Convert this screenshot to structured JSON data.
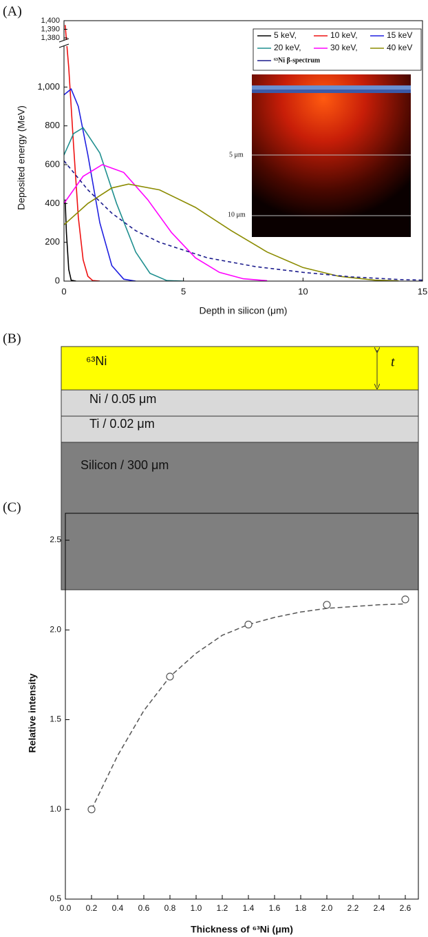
{
  "chart_data": [
    {
      "type": "line",
      "panel_label": "(A)",
      "xlabel": "Depth in silicon (μm)",
      "ylabel": "Deposited energy (MeV)",
      "xlim": [
        0,
        15
      ],
      "xticks": [
        0,
        5,
        10,
        15
      ],
      "ylim": [
        0,
        1400
      ],
      "ybreak": [
        1200,
        1380
      ],
      "yticks": [
        0,
        200,
        400,
        600,
        800,
        {
          "value": 1000,
          "label": "1,000"
        },
        {
          "value": 1380,
          "label": "1,380"
        },
        {
          "value": 1390,
          "label": "1,390"
        },
        {
          "value": 1400,
          "label": "1,400"
        }
      ],
      "legend": "upper right",
      "inset_labels": [
        "5 μm",
        "10 μm"
      ],
      "series": [
        {
          "name": "5 keV,",
          "color": "#000000",
          "x": [
            0.05,
            0.1,
            0.2,
            0.3,
            0.5
          ],
          "values": [
            420,
            250,
            60,
            5,
            0
          ]
        },
        {
          "name": "10 keV,",
          "color": "#ee1111",
          "x": [
            0.05,
            0.2,
            0.4,
            0.6,
            0.8,
            1.0,
            1.2,
            1.5
          ],
          "values": [
            1395,
            1100,
            700,
            330,
            110,
            25,
            3,
            0
          ]
        },
        {
          "name": "15 keV",
          "color": "#1f1fe0",
          "x": [
            0,
            0.3,
            0.6,
            1.0,
            1.5,
            2.0,
            2.5,
            3.0
          ],
          "values": [
            960,
            990,
            900,
            650,
            300,
            80,
            10,
            0
          ]
        },
        {
          "name": "20 keV,",
          "color": "#1f8f8f",
          "x": [
            0,
            0.4,
            0.8,
            1.5,
            2.2,
            3.0,
            3.6,
            4.3,
            5
          ],
          "values": [
            650,
            760,
            790,
            660,
            400,
            150,
            40,
            3,
            0
          ]
        },
        {
          "name": "30 keV,",
          "color": "#ff00ff",
          "x": [
            0,
            0.8,
            1.6,
            2.5,
            3.5,
            4.5,
            5.5,
            6.5,
            7.5,
            8.5
          ],
          "values": [
            400,
            540,
            600,
            560,
            420,
            250,
            120,
            45,
            12,
            2
          ]
        },
        {
          "name": "40 keV",
          "color": "#8b8b00",
          "x": [
            0,
            1,
            2,
            2.7,
            4,
            5.5,
            7,
            8.5,
            10,
            11.5,
            13,
            14
          ],
          "values": [
            290,
            400,
            480,
            500,
            470,
            380,
            260,
            150,
            70,
            25,
            5,
            1
          ]
        },
        {
          "name": "⁶³Ni β-spectrum",
          "color": "#1a1a8c",
          "dash": true,
          "x": [
            0,
            1,
            2,
            3,
            4,
            6,
            8,
            10,
            12,
            14,
            15
          ],
          "values": [
            620,
            470,
            350,
            260,
            200,
            120,
            75,
            45,
            22,
            8,
            5
          ]
        }
      ]
    },
    {
      "type": "scatter",
      "panel_label": "(C)",
      "xlabel": "Thickness of ⁶³Ni (μm)",
      "ylabel": "Relative intensity",
      "xlim": [
        0,
        2.7
      ],
      "xticks": [
        {
          "value": 0,
          "label": "0.0"
        },
        0.2,
        0.4,
        0.6,
        0.8,
        {
          "value": 1,
          "label": "1.0"
        },
        1.2,
        1.4,
        1.6,
        1.8,
        {
          "value": 2,
          "label": "2.0"
        },
        2.2,
        2.4,
        2.6
      ],
      "ylim": [
        0.5,
        2.65
      ],
      "yticks": [
        0.5,
        {
          "value": 1,
          "label": "1.0"
        },
        1.5,
        {
          "value": 2,
          "label": "2.0"
        },
        2.5
      ],
      "color": "#555555",
      "x": [
        0.2,
        0.8,
        1.4,
        2.0,
        2.6
      ],
      "values": [
        1.0,
        1.74,
        2.03,
        2.14,
        2.17
      ],
      "fit": {
        "dash": true,
        "x": [
          0.2,
          0.4,
          0.6,
          0.8,
          1.0,
          1.2,
          1.4,
          1.6,
          1.8,
          2.0,
          2.2,
          2.4,
          2.6
        ],
        "values": [
          1.0,
          1.3,
          1.55,
          1.74,
          1.87,
          1.97,
          2.03,
          2.07,
          2.1,
          2.12,
          2.13,
          2.14,
          2.145
        ]
      }
    }
  ],
  "diagram": {
    "panel_label": "(B)",
    "layers": [
      "⁶³Ni",
      "Ni / 0.05 μm",
      "Ti / 0.02 μm",
      "Silicon / 300 μm"
    ],
    "thickness_label": "t"
  }
}
